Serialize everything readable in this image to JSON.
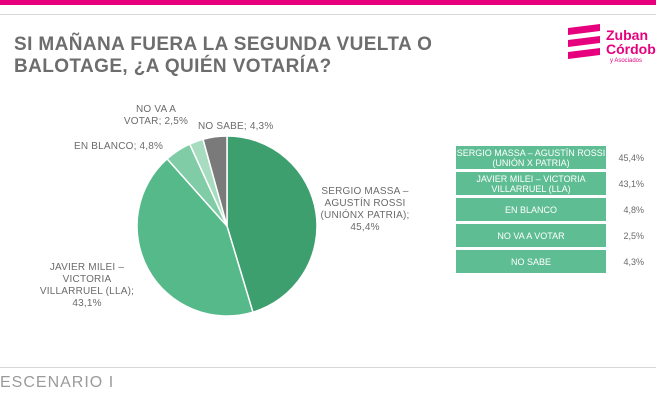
{
  "title": "SI MAÑANA FUERA LA SEGUNDA VUELTA O BALOTAGE, ¿A QUIÉN VOTARÍA?",
  "logo": {
    "line1": "Zuban",
    "line2": "Córdoba",
    "line3": "y Asociados"
  },
  "footer": "ESCENARIO I",
  "colors": {
    "accent": "#e6007e"
  },
  "chart_data": {
    "type": "pie",
    "slices": [
      {
        "label": "SERGIO MASSA – AGUSTÍN ROSSI (UNIÓNX PATRIA); 45,4%",
        "value": 45.4,
        "color": "#3d9e6e"
      },
      {
        "label": "JAVIER MILEI – VICTORIA VILLARRUEL (LLA); 43,1%",
        "value": 43.1,
        "color": "#55b98a"
      },
      {
        "label": "EN BLANCO; 4,8%",
        "value": 4.8,
        "color": "#7fcca6"
      },
      {
        "label": "NO VA A VOTAR; 2,5%",
        "value": 2.5,
        "color": "#a7dcc1"
      },
      {
        "label": "NO SABE; 4,3%",
        "value": 4.3,
        "color": "#7a7a7a"
      }
    ],
    "table": [
      {
        "name": "SERGIO MASSA – AGUSTÍN ROSSI (UNIÓN X PATRIA)",
        "value": "45,4%"
      },
      {
        "name": "JAVIER MILEI – VICTORIA VILLARRUEL (LLA)",
        "value": "43,1%"
      },
      {
        "name": "EN BLANCO",
        "value": "4,8%"
      },
      {
        "name": "NO VA A VOTAR",
        "value": "2,5%"
      },
      {
        "name": "NO SABE",
        "value": "4,3%"
      }
    ]
  }
}
